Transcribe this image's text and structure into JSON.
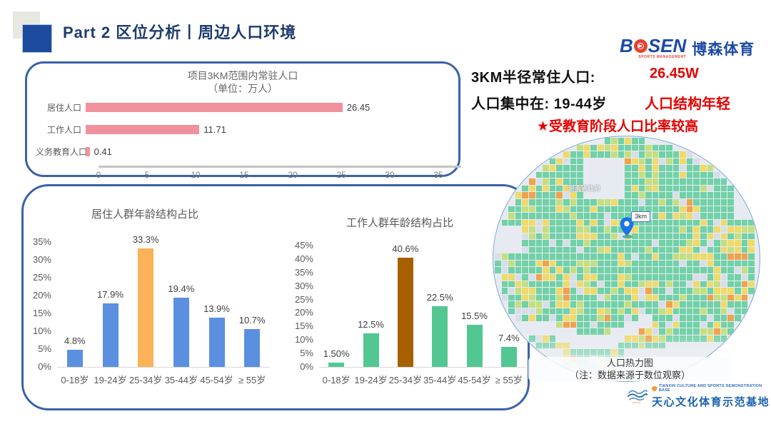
{
  "header": {
    "title": "Part 2 区位分析丨周边人口环境"
  },
  "logos": {
    "bosen": {
      "b": "B",
      "sen": "SEN",
      "sub": "SPORTS MANAGEMENT",
      "cn": "博森体育"
    },
    "tianxin": {
      "en": "TIANXIN CULTURE AND SPORTS DEMONSTRATION BASE",
      "cn": "天心文化体育示范基地"
    }
  },
  "summary": {
    "line1_label": "3KM半径常住人口:",
    "line1_value": "26.45W",
    "line2_label": "人口集中在:  19-44岁",
    "line2_value": "人口结构年轻",
    "line3": "★受教育阶段人口比率较高",
    "accent_red": "#e60000"
  },
  "heatmap": {
    "pin_label": "3km",
    "map_label": "湖南省政府",
    "caption_line1": "人口热力图",
    "caption_line2": "（注：数据来源于数位观察）",
    "palette": {
      "orange": "#f0a24e",
      "yellow": "#f0da68",
      "olive": "#c4df7e",
      "pale": "#d8dee8",
      "green": "#71d1a7"
    }
  },
  "chart_data": [
    {
      "type": "bar",
      "orientation": "horizontal",
      "title": "项目3KM范围内常驻人口",
      "subtitle": "（单位：万人）",
      "categories": [
        "居住人口",
        "工作人口",
        "义务教育人口"
      ],
      "values": [
        26.45,
        11.71,
        0.41
      ],
      "labels": [
        "26.45",
        "11.71",
        "0.41"
      ],
      "xlim": [
        0,
        35
      ],
      "xticks": [
        "0",
        "5",
        "10",
        "15",
        "20",
        "25",
        "30",
        "35"
      ],
      "bar_color": "#f0919e",
      "grid": false,
      "legend": false
    },
    {
      "type": "bar",
      "orientation": "vertical",
      "title": "居住人群年龄结构占比",
      "categories": [
        "0-18岁",
        "19-24岁",
        "25-34岁",
        "35-44岁",
        "45-54岁",
        "≥ 55岁"
      ],
      "values": [
        4.8,
        17.9,
        33.3,
        19.4,
        13.9,
        10.7
      ],
      "labels": [
        "4.8%",
        "17.9%",
        "33.3%",
        "19.4%",
        "13.9%",
        "10.7%"
      ],
      "ylim": [
        0,
        35
      ],
      "yticks": [
        "0%",
        "5%",
        "10%",
        "15%",
        "20%",
        "25%",
        "30%",
        "35%"
      ],
      "bar_colors": [
        "#5b8fe0",
        "#5b8fe0",
        "#fbb259",
        "#5b8fe0",
        "#5b8fe0",
        "#5b8fe0"
      ],
      "grid": false,
      "legend": false
    },
    {
      "type": "bar",
      "orientation": "vertical",
      "title": "工作人群年龄结构占比",
      "categories": [
        "0-18岁",
        "19-24岁",
        "25-34岁",
        "35-44岁",
        "45-54岁",
        "≥ 55岁"
      ],
      "values": [
        1.5,
        12.5,
        40.6,
        22.5,
        15.5,
        7.4
      ],
      "labels": [
        "1.50%",
        "12.5%",
        "40.6%",
        "22.5%",
        "15.5%",
        "7.4%"
      ],
      "ylim": [
        0,
        45
      ],
      "yticks": [
        "0%",
        "5%",
        "10%",
        "15%",
        "20%",
        "25%",
        "30%",
        "35%",
        "40%",
        "45%"
      ],
      "bar_colors": [
        "#52c792",
        "#52c792",
        "#a66000",
        "#52c792",
        "#52c792",
        "#52c792"
      ],
      "grid": false,
      "legend": false
    }
  ]
}
